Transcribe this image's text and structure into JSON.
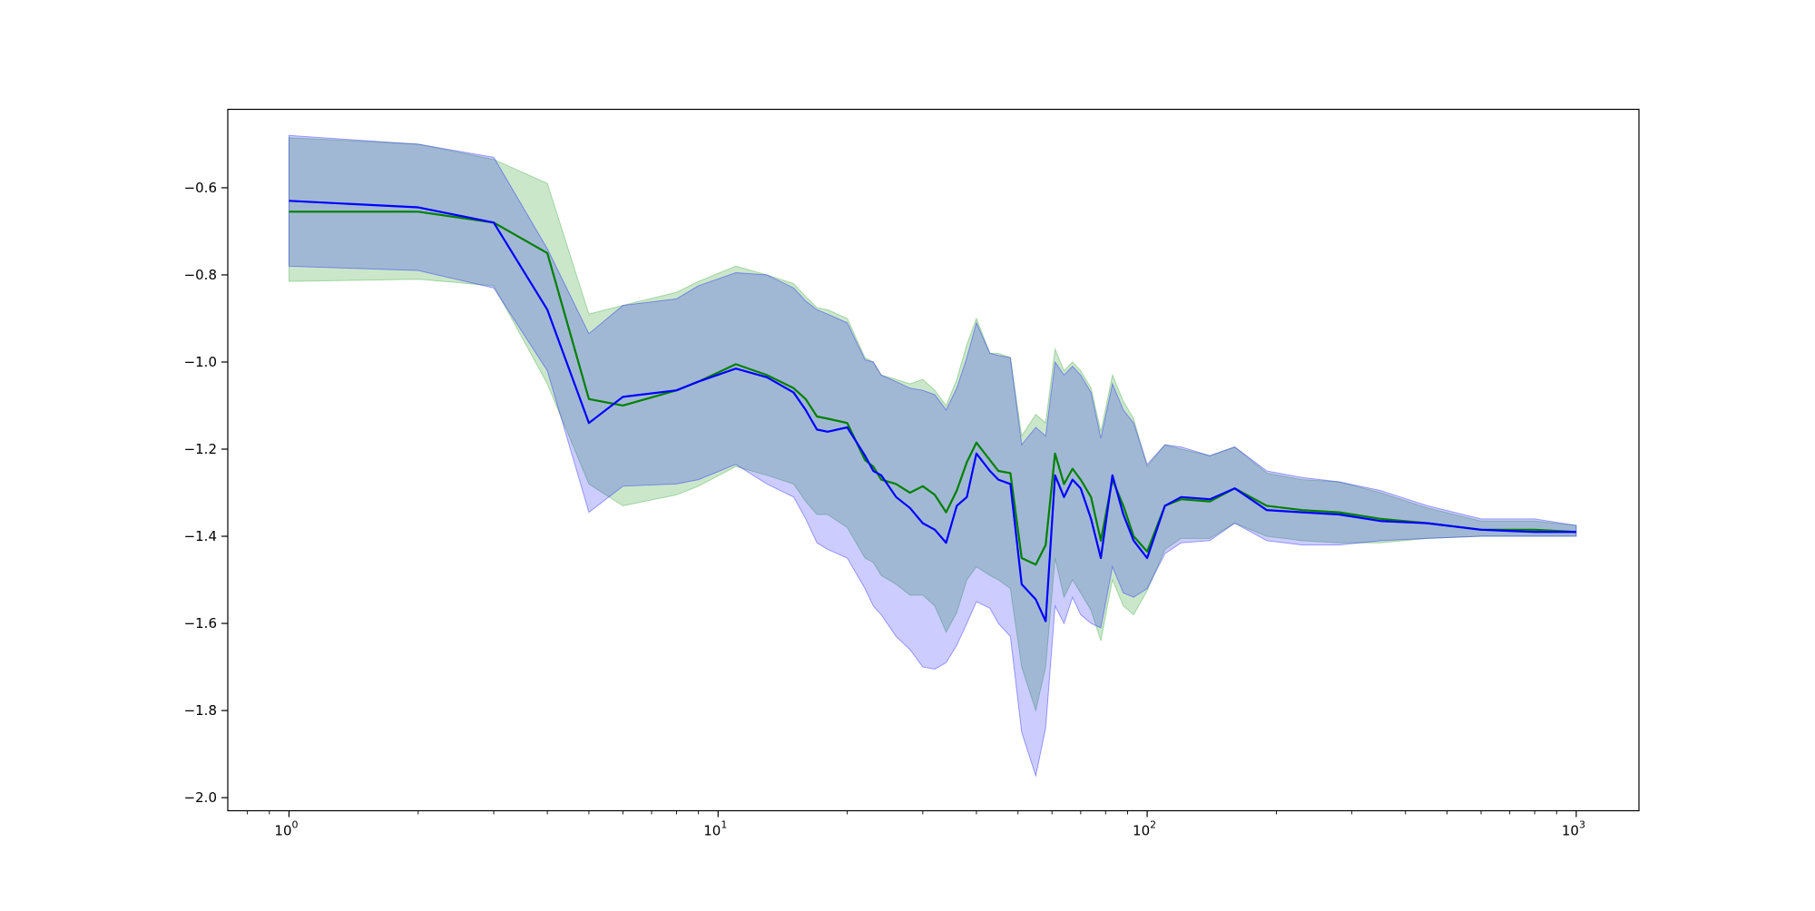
{
  "chart_data": {
    "type": "line",
    "title": "",
    "xlabel": "",
    "ylabel": "",
    "xscale": "log",
    "xlim": [
      0.72,
      1400
    ],
    "ylim": [
      -2.03,
      -0.42
    ],
    "grid": false,
    "legend": "none",
    "x_ticks": [
      {
        "base": "10",
        "exp": "0",
        "value": 1
      },
      {
        "base": "10",
        "exp": "1",
        "value": 10
      },
      {
        "base": "10",
        "exp": "2",
        "value": 100
      },
      {
        "base": "10",
        "exp": "3",
        "value": 1000
      }
    ],
    "y_ticks": [
      {
        "label": "−0.6",
        "value": -0.6
      },
      {
        "label": "−0.8",
        "value": -0.8
      },
      {
        "label": "−1.0",
        "value": -1.0
      },
      {
        "label": "−1.2",
        "value": -1.2
      },
      {
        "label": "−1.4",
        "value": -1.4
      },
      {
        "label": "−1.6",
        "value": -1.6
      },
      {
        "label": "−1.8",
        "value": -1.8
      },
      {
        "label": "−2.0",
        "value": -2.0
      }
    ],
    "series": [
      {
        "color": "#008000",
        "band_color": "#2ca02c",
        "band_opacity": 0.25,
        "x": [
          1,
          2,
          3,
          4,
          5,
          6,
          8,
          9,
          11,
          13,
          15,
          16,
          17,
          18,
          20,
          22,
          23,
          24,
          26,
          28,
          30,
          32,
          34,
          36,
          38,
          40,
          43,
          45,
          48,
          51,
          55,
          58,
          61,
          64,
          67,
          70,
          74,
          78,
          83,
          88,
          93,
          100,
          110,
          120,
          140,
          160,
          190,
          230,
          280,
          350,
          450,
          600,
          800,
          1000
        ],
        "y": [
          -0.655,
          -0.655,
          -0.68,
          -0.75,
          -1.085,
          -1.1,
          -1.065,
          -1.045,
          -1.005,
          -1.03,
          -1.06,
          -1.085,
          -1.125,
          -1.13,
          -1.14,
          -1.225,
          -1.24,
          -1.27,
          -1.28,
          -1.3,
          -1.285,
          -1.305,
          -1.345,
          -1.295,
          -1.23,
          -1.185,
          -1.225,
          -1.25,
          -1.255,
          -1.45,
          -1.465,
          -1.42,
          -1.21,
          -1.28,
          -1.245,
          -1.27,
          -1.31,
          -1.41,
          -1.27,
          -1.33,
          -1.4,
          -1.435,
          -1.33,
          -1.315,
          -1.32,
          -1.29,
          -1.33,
          -1.34,
          -1.345,
          -1.36,
          -1.37,
          -1.385,
          -1.385,
          -1.39
        ],
        "lower": [
          -0.815,
          -0.81,
          -0.825,
          -1.05,
          -1.28,
          -1.33,
          -1.305,
          -1.285,
          -1.24,
          -1.26,
          -1.28,
          -1.32,
          -1.35,
          -1.35,
          -1.38,
          -1.45,
          -1.46,
          -1.49,
          -1.51,
          -1.535,
          -1.535,
          -1.56,
          -1.62,
          -1.575,
          -1.5,
          -1.47,
          -1.49,
          -1.5,
          -1.52,
          -1.7,
          -1.8,
          -1.7,
          -1.45,
          -1.54,
          -1.5,
          -1.53,
          -1.57,
          -1.64,
          -1.5,
          -1.56,
          -1.58,
          -1.525,
          -1.43,
          -1.405,
          -1.405,
          -1.37,
          -1.4,
          -1.41,
          -1.415,
          -1.415,
          -1.405,
          -1.4,
          -1.4,
          -1.4
        ],
        "upper": [
          -0.485,
          -0.5,
          -0.535,
          -0.59,
          -0.89,
          -0.87,
          -0.84,
          -0.815,
          -0.78,
          -0.8,
          -0.82,
          -0.85,
          -0.875,
          -0.88,
          -0.9,
          -0.99,
          -1.0,
          -1.03,
          -1.04,
          -1.05,
          -1.04,
          -1.065,
          -1.1,
          -1.04,
          -0.96,
          -0.9,
          -0.98,
          -0.98,
          -0.99,
          -1.17,
          -1.12,
          -1.14,
          -0.97,
          -1.02,
          -1.0,
          -1.02,
          -1.06,
          -1.16,
          -1.03,
          -1.09,
          -1.13,
          -1.24,
          -1.19,
          -1.2,
          -1.215,
          -1.195,
          -1.255,
          -1.27,
          -1.275,
          -1.3,
          -1.335,
          -1.365,
          -1.365,
          -1.375
        ]
      },
      {
        "color": "#0000ff",
        "band_color": "#0000ff",
        "band_opacity": 0.2,
        "x": [
          1,
          2,
          3,
          4,
          5,
          6,
          8,
          9,
          11,
          13,
          15,
          16,
          17,
          18,
          20,
          22,
          23,
          24,
          26,
          28,
          30,
          32,
          34,
          36,
          38,
          40,
          43,
          45,
          48,
          51,
          55,
          58,
          61,
          64,
          67,
          70,
          74,
          78,
          83,
          88,
          93,
          100,
          110,
          120,
          140,
          160,
          190,
          230,
          280,
          350,
          450,
          600,
          800,
          1000
        ],
        "y": [
          -0.63,
          -0.645,
          -0.68,
          -0.88,
          -1.14,
          -1.08,
          -1.065,
          -1.045,
          -1.015,
          -1.035,
          -1.07,
          -1.11,
          -1.155,
          -1.16,
          -1.15,
          -1.215,
          -1.25,
          -1.26,
          -1.31,
          -1.335,
          -1.37,
          -1.385,
          -1.415,
          -1.33,
          -1.31,
          -1.21,
          -1.25,
          -1.27,
          -1.28,
          -1.51,
          -1.545,
          -1.595,
          -1.26,
          -1.31,
          -1.27,
          -1.29,
          -1.36,
          -1.45,
          -1.26,
          -1.35,
          -1.41,
          -1.45,
          -1.33,
          -1.31,
          -1.315,
          -1.29,
          -1.34,
          -1.345,
          -1.35,
          -1.365,
          -1.37,
          -1.385,
          -1.39,
          -1.39
        ],
        "lower": [
          -0.78,
          -0.79,
          -0.83,
          -1.02,
          -1.345,
          -1.285,
          -1.28,
          -1.27,
          -1.235,
          -1.28,
          -1.31,
          -1.36,
          -1.415,
          -1.43,
          -1.45,
          -1.52,
          -1.56,
          -1.58,
          -1.63,
          -1.66,
          -1.7,
          -1.705,
          -1.69,
          -1.65,
          -1.6,
          -1.55,
          -1.565,
          -1.6,
          -1.63,
          -1.85,
          -1.95,
          -1.84,
          -1.56,
          -1.6,
          -1.54,
          -1.58,
          -1.6,
          -1.61,
          -1.47,
          -1.53,
          -1.54,
          -1.52,
          -1.44,
          -1.415,
          -1.41,
          -1.37,
          -1.41,
          -1.42,
          -1.42,
          -1.41,
          -1.405,
          -1.4,
          -1.4,
          -1.4
        ],
        "upper": [
          -0.48,
          -0.5,
          -0.53,
          -0.74,
          -0.935,
          -0.87,
          -0.855,
          -0.825,
          -0.795,
          -0.8,
          -0.83,
          -0.86,
          -0.88,
          -0.89,
          -0.91,
          -0.995,
          -1.0,
          -1.03,
          -1.045,
          -1.06,
          -1.065,
          -1.075,
          -1.11,
          -1.06,
          -0.99,
          -0.91,
          -0.98,
          -0.985,
          -0.99,
          -1.19,
          -1.15,
          -1.17,
          -1.0,
          -1.03,
          -1.01,
          -1.03,
          -1.07,
          -1.175,
          -1.05,
          -1.11,
          -1.14,
          -1.235,
          -1.19,
          -1.195,
          -1.215,
          -1.195,
          -1.25,
          -1.265,
          -1.275,
          -1.295,
          -1.33,
          -1.36,
          -1.36,
          -1.375
        ]
      }
    ]
  }
}
